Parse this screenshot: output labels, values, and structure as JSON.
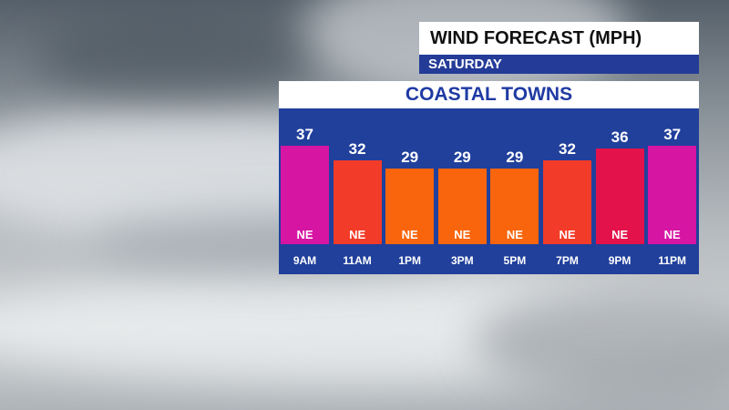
{
  "header": {
    "title": "WIND FORECAST (MPH)",
    "day": "SATURDAY",
    "region": "COASTAL TOWNS"
  },
  "colors": {
    "panel": "#21409b",
    "magenta": "#d615a3",
    "red_orange": "#f23b28",
    "orange": "#f9650d",
    "crimson": "#e3124a"
  },
  "chart_data": {
    "type": "bar",
    "title": "WIND FORECAST (MPH)",
    "subtitle": "SATURDAY",
    "categories": [
      "9AM",
      "11AM",
      "1PM",
      "3PM",
      "5PM",
      "7PM",
      "9PM",
      "11PM"
    ],
    "values": [
      37,
      32,
      29,
      29,
      29,
      32,
      36,
      37
    ],
    "directions": [
      "NE",
      "NE",
      "NE",
      "NE",
      "NE",
      "NE",
      "NE",
      "NE"
    ],
    "bar_colors": [
      "#d615a3",
      "#f23b28",
      "#f9650d",
      "#f9650d",
      "#f9650d",
      "#f23b28",
      "#e3124a",
      "#d615a3"
    ],
    "unit": "MPH",
    "ylim": [
      20,
      37
    ],
    "grid": false,
    "legend": "none"
  }
}
